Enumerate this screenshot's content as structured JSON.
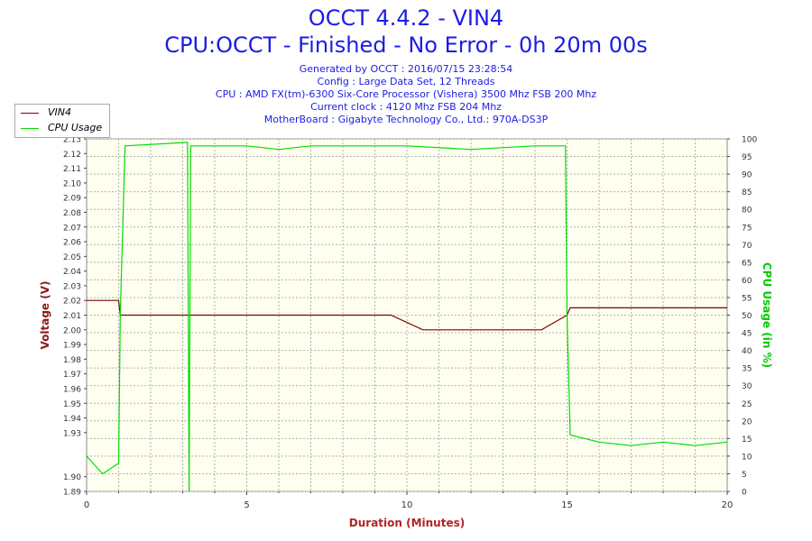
{
  "header": {
    "title": "OCCT 4.4.2 - VIN4",
    "subtitle": "CPU:OCCT - Finished - No Error - 0h 20m 00s",
    "info": [
      "Generated by OCCT : 2016/07/15 23:28:54",
      "Config : Large Data Set, 12 Threads",
      "CPU : AMD FX(tm)-6300 Six-Core Processor (Vishera) 3500 Mhz FSB 200 Mhz",
      "Current clock : 4120 Mhz FSB 204 Mhz",
      "MotherBoard : Gigabyte Technology Co., Ltd.: 970A-DS3P"
    ]
  },
  "legend": [
    {
      "label": "VIN4",
      "color": "#800000"
    },
    {
      "label": "CPU Usage",
      "color": "#00dd00"
    }
  ],
  "colors": {
    "plot_bg": "#fffff0",
    "vin4": "#800000",
    "cpu": "#00dd00",
    "axis_left": "#8b1a1a",
    "axis_right": "#00cc00",
    "axis_x": "#b22222"
  },
  "chart_data": {
    "type": "line",
    "xlabel": "Duration (Minutes)",
    "ylabel_left": "Voltage (V)",
    "ylabel_right": "CPU Usage (in %)",
    "xlim": [
      0,
      20
    ],
    "ylim_left": [
      1.89,
      2.13
    ],
    "ylim_right": [
      0,
      100
    ],
    "x_ticks": [
      "0",
      "5",
      "10",
      "15",
      "20"
    ],
    "y_ticks_left": [
      "1.89",
      "1.90",
      "1.93",
      "1.94",
      "1.95",
      "1.96",
      "1.97",
      "1.98",
      "1.99",
      "2.00",
      "2.01",
      "2.02",
      "2.03",
      "2.04",
      "2.05",
      "2.06",
      "2.07",
      "2.08",
      "2.09",
      "2.10",
      "2.11",
      "2.12",
      "2.13"
    ],
    "y_ticks_right": [
      "0",
      "5",
      "10",
      "15",
      "20",
      "25",
      "30",
      "35",
      "40",
      "45",
      "50",
      "55",
      "60",
      "65",
      "70",
      "75",
      "80",
      "85",
      "90",
      "95",
      "100"
    ],
    "grid": true,
    "series": [
      {
        "name": "VIN4",
        "axis": "left",
        "x": [
          0,
          1.0,
          1.05,
          3.2,
          3.25,
          9.5,
          10.5,
          12.5,
          13.7,
          14.2,
          15.0,
          15.1,
          16.0,
          17.0,
          18.0,
          18.1,
          19.0,
          19.9,
          20.0
        ],
        "y": [
          2.02,
          2.02,
          2.01,
          2.01,
          2.01,
          2.01,
          2.0,
          2.0,
          2.0,
          2.0,
          2.01,
          2.015,
          2.015,
          2.015,
          2.015,
          2.015,
          2.015,
          2.015,
          2.015
        ]
      },
      {
        "name": "CPU Usage",
        "axis": "right",
        "x": [
          0,
          0.5,
          1.0,
          1.05,
          1.2,
          3.15,
          3.2,
          3.25,
          4.0,
          5.0,
          6.0,
          7.0,
          8.0,
          9.0,
          10.0,
          12.0,
          14.0,
          14.95,
          15.0,
          15.1,
          16.0,
          17.0,
          18.0,
          19.0,
          20.0
        ],
        "y": [
          10,
          5,
          8,
          50,
          98,
          99,
          0,
          98,
          98,
          98,
          97,
          98,
          98,
          98,
          98,
          97,
          98,
          98,
          50,
          16,
          14,
          13,
          14,
          13,
          14
        ]
      }
    ]
  }
}
